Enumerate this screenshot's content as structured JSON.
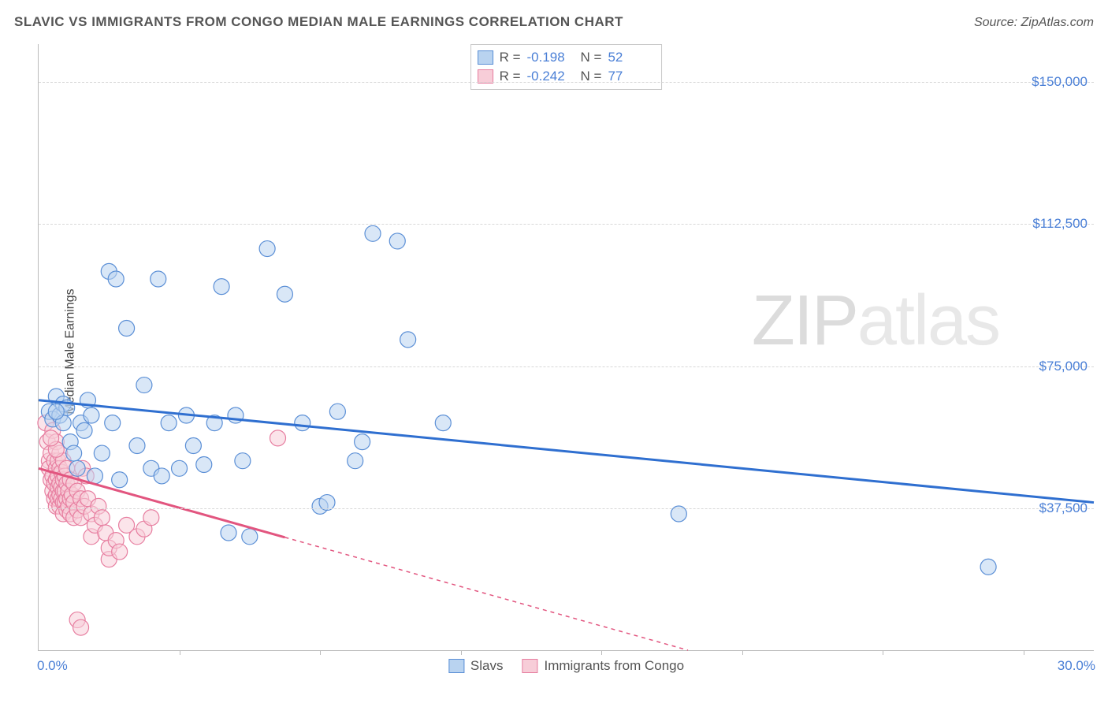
{
  "title": "SLAVIC VS IMMIGRANTS FROM CONGO MEDIAN MALE EARNINGS CORRELATION CHART",
  "source_label": "Source:",
  "source_name": "ZipAtlas.com",
  "ylabel": "Median Male Earnings",
  "watermark_1": "ZIP",
  "watermark_2": "atlas",
  "chart": {
    "type": "scatter",
    "xlim": [
      0,
      30
    ],
    "ylim": [
      0,
      160000
    ],
    "x_tick_step": 4,
    "y_gridlines": [
      37500,
      75000,
      112500,
      150000
    ],
    "y_tick_labels": [
      "$37,500",
      "$75,000",
      "$112,500",
      "$150,000"
    ],
    "x_min_label": "0.0%",
    "x_max_label": "30.0%",
    "background_color": "#ffffff",
    "grid_color": "#d8d8d8",
    "axis_color": "#bbbbbb",
    "tick_label_color": "#4a7fd6",
    "tick_label_fontsize": 17,
    "title_fontsize": 17,
    "title_color": "#555555",
    "marker_radius": 10,
    "marker_opacity": 0.55,
    "trend_line_width": 3
  },
  "series": [
    {
      "name": "Slavs",
      "color_fill": "#b9d3f0",
      "color_stroke": "#5b8fd6",
      "trend_color": "#2f6fd0",
      "R_label": "R =",
      "R": "-0.198",
      "N_label": "N =",
      "N": "52",
      "trend": {
        "x1": 0,
        "y1": 66000,
        "x2": 30,
        "y2": 39000,
        "dash_from_x": null
      },
      "points": [
        [
          0.3,
          63000
        ],
        [
          0.4,
          61000
        ],
        [
          0.5,
          67000
        ],
        [
          0.6,
          62000
        ],
        [
          0.7,
          65000
        ],
        [
          0.7,
          60000
        ],
        [
          0.8,
          64000
        ],
        [
          0.9,
          55000
        ],
        [
          1.0,
          52000
        ],
        [
          1.1,
          48000
        ],
        [
          1.2,
          60000
        ],
        [
          1.3,
          58000
        ],
        [
          1.5,
          62000
        ],
        [
          1.6,
          46000
        ],
        [
          1.8,
          52000
        ],
        [
          2.0,
          100000
        ],
        [
          2.2,
          98000
        ],
        [
          2.3,
          45000
        ],
        [
          2.5,
          85000
        ],
        [
          2.8,
          54000
        ],
        [
          3.0,
          70000
        ],
        [
          3.2,
          48000
        ],
        [
          3.4,
          98000
        ],
        [
          3.5,
          46000
        ],
        [
          3.7,
          60000
        ],
        [
          4.0,
          48000
        ],
        [
          4.2,
          62000
        ],
        [
          4.4,
          54000
        ],
        [
          5.0,
          60000
        ],
        [
          5.2,
          96000
        ],
        [
          5.4,
          31000
        ],
        [
          5.6,
          62000
        ],
        [
          5.8,
          50000
        ],
        [
          6.0,
          30000
        ],
        [
          6.5,
          106000
        ],
        [
          7.0,
          94000
        ],
        [
          7.5,
          60000
        ],
        [
          8.0,
          38000
        ],
        [
          8.2,
          39000
        ],
        [
          8.5,
          63000
        ],
        [
          9.0,
          50000
        ],
        [
          9.2,
          55000
        ],
        [
          9.5,
          110000
        ],
        [
          10.2,
          108000
        ],
        [
          10.5,
          82000
        ],
        [
          11.5,
          60000
        ],
        [
          18.2,
          36000
        ],
        [
          27.0,
          22000
        ],
        [
          0.5,
          63000
        ],
        [
          1.4,
          66000
        ],
        [
          2.1,
          60000
        ],
        [
          4.7,
          49000
        ]
      ]
    },
    {
      "name": "Immigrants from Congo",
      "color_fill": "#f7cdd8",
      "color_stroke": "#e77ea0",
      "trend_color": "#e2557f",
      "R_label": "R =",
      "R": "-0.242",
      "N_label": "N =",
      "N": "77",
      "trend": {
        "x1": 0,
        "y1": 48000,
        "x2": 30,
        "y2": -30000,
        "dash_from_x": 7
      },
      "points": [
        [
          0.2,
          60000
        ],
        [
          0.25,
          55000
        ],
        [
          0.3,
          50000
        ],
        [
          0.3,
          48000
        ],
        [
          0.35,
          45000
        ],
        [
          0.35,
          52000
        ],
        [
          0.4,
          58000
        ],
        [
          0.4,
          46000
        ],
        [
          0.4,
          42000
        ],
        [
          0.45,
          50000
        ],
        [
          0.45,
          44000
        ],
        [
          0.45,
          40000
        ],
        [
          0.5,
          55000
        ],
        [
          0.5,
          48000
        ],
        [
          0.5,
          45000
        ],
        [
          0.5,
          41000
        ],
        [
          0.5,
          38000
        ],
        [
          0.55,
          50000
        ],
        [
          0.55,
          46000
        ],
        [
          0.55,
          43000
        ],
        [
          0.55,
          40000
        ],
        [
          0.6,
          52000
        ],
        [
          0.6,
          48000
        ],
        [
          0.6,
          44000
        ],
        [
          0.6,
          41000
        ],
        [
          0.6,
          38000
        ],
        [
          0.65,
          47000
        ],
        [
          0.65,
          43000
        ],
        [
          0.65,
          40000
        ],
        [
          0.7,
          50000
        ],
        [
          0.7,
          45000
        ],
        [
          0.7,
          42000
        ],
        [
          0.7,
          39000
        ],
        [
          0.7,
          36000
        ],
        [
          0.75,
          46000
        ],
        [
          0.75,
          42000
        ],
        [
          0.75,
          39000
        ],
        [
          0.8,
          48000
        ],
        [
          0.8,
          44000
        ],
        [
          0.8,
          40000
        ],
        [
          0.8,
          37000
        ],
        [
          0.85,
          42000
        ],
        [
          0.85,
          38000
        ],
        [
          0.9,
          45000
        ],
        [
          0.9,
          40000
        ],
        [
          0.9,
          36000
        ],
        [
          0.95,
          41000
        ],
        [
          1.0,
          44000
        ],
        [
          1.0,
          39000
        ],
        [
          1.0,
          35000
        ],
        [
          1.1,
          42000
        ],
        [
          1.1,
          37000
        ],
        [
          1.2,
          40000
        ],
        [
          1.2,
          35000
        ],
        [
          1.25,
          48000
        ],
        [
          1.3,
          38000
        ],
        [
          1.35,
          46000
        ],
        [
          1.4,
          40000
        ],
        [
          1.5,
          36000
        ],
        [
          1.5,
          30000
        ],
        [
          1.6,
          33000
        ],
        [
          1.7,
          38000
        ],
        [
          1.8,
          35000
        ],
        [
          1.9,
          31000
        ],
        [
          2.0,
          24000
        ],
        [
          2.0,
          27000
        ],
        [
          2.2,
          29000
        ],
        [
          2.3,
          26000
        ],
        [
          2.5,
          33000
        ],
        [
          2.8,
          30000
        ],
        [
          3.0,
          32000
        ],
        [
          3.2,
          35000
        ],
        [
          1.1,
          8000
        ],
        [
          1.2,
          6000
        ],
        [
          6.8,
          56000
        ],
        [
          0.5,
          53000
        ],
        [
          0.35,
          56000
        ]
      ]
    }
  ]
}
